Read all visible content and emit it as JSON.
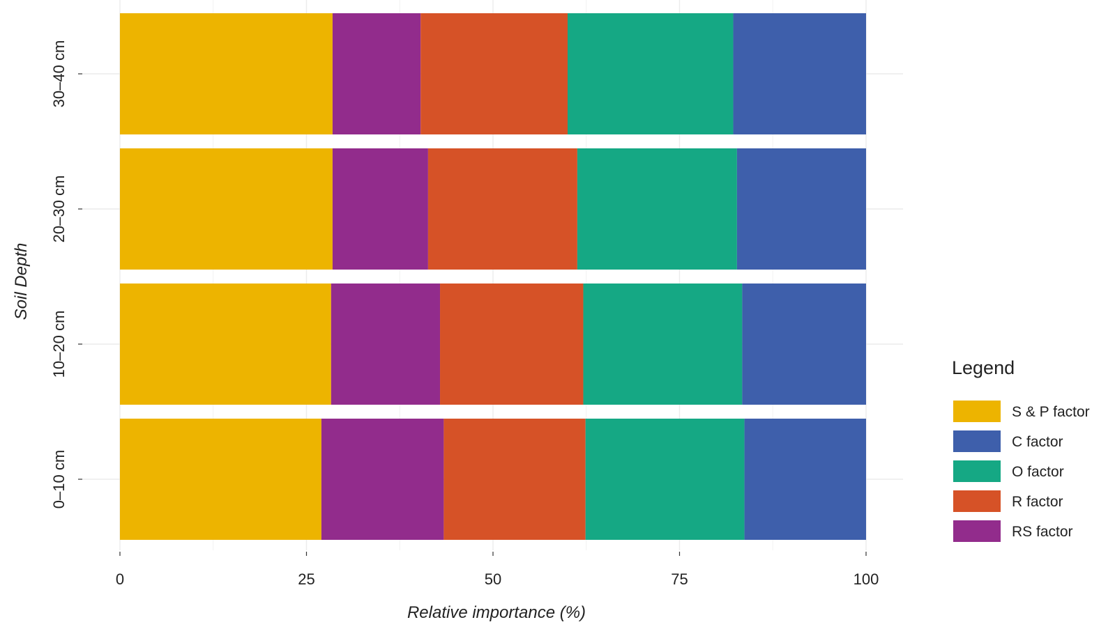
{
  "chart_data": {
    "type": "bar",
    "orientation": "horizontal",
    "stacked": true,
    "xlabel": "Relative importance (%)",
    "ylabel": "Soil Depth",
    "xlim": [
      0,
      100
    ],
    "xticks": [
      "0",
      "25",
      "50",
      "75",
      "100"
    ],
    "categories": [
      "0–10 cm",
      "10–20 cm",
      "20–30 cm",
      "30–40 cm"
    ],
    "series": [
      {
        "name": "S & P factor",
        "color": "#EDB400",
        "values": [
          27.0,
          28.3,
          28.5,
          28.5
        ]
      },
      {
        "name": "RS factor",
        "color": "#922C8C",
        "values": [
          16.4,
          14.6,
          12.8,
          11.8
        ]
      },
      {
        "name": "R factor",
        "color": "#D65227",
        "values": [
          19.0,
          19.2,
          20.0,
          19.7
        ]
      },
      {
        "name": "O factor",
        "color": "#15A884",
        "values": [
          21.3,
          21.3,
          21.4,
          22.2
        ]
      },
      {
        "name": "C factor",
        "color": "#3E5FAB",
        "values": [
          16.3,
          16.6,
          17.3,
          17.8
        ]
      }
    ],
    "legend": {
      "title": "Legend",
      "position": "right",
      "order": [
        "S & P factor",
        "C factor",
        "O factor",
        "R factor",
        "RS factor"
      ]
    },
    "grid": true
  }
}
